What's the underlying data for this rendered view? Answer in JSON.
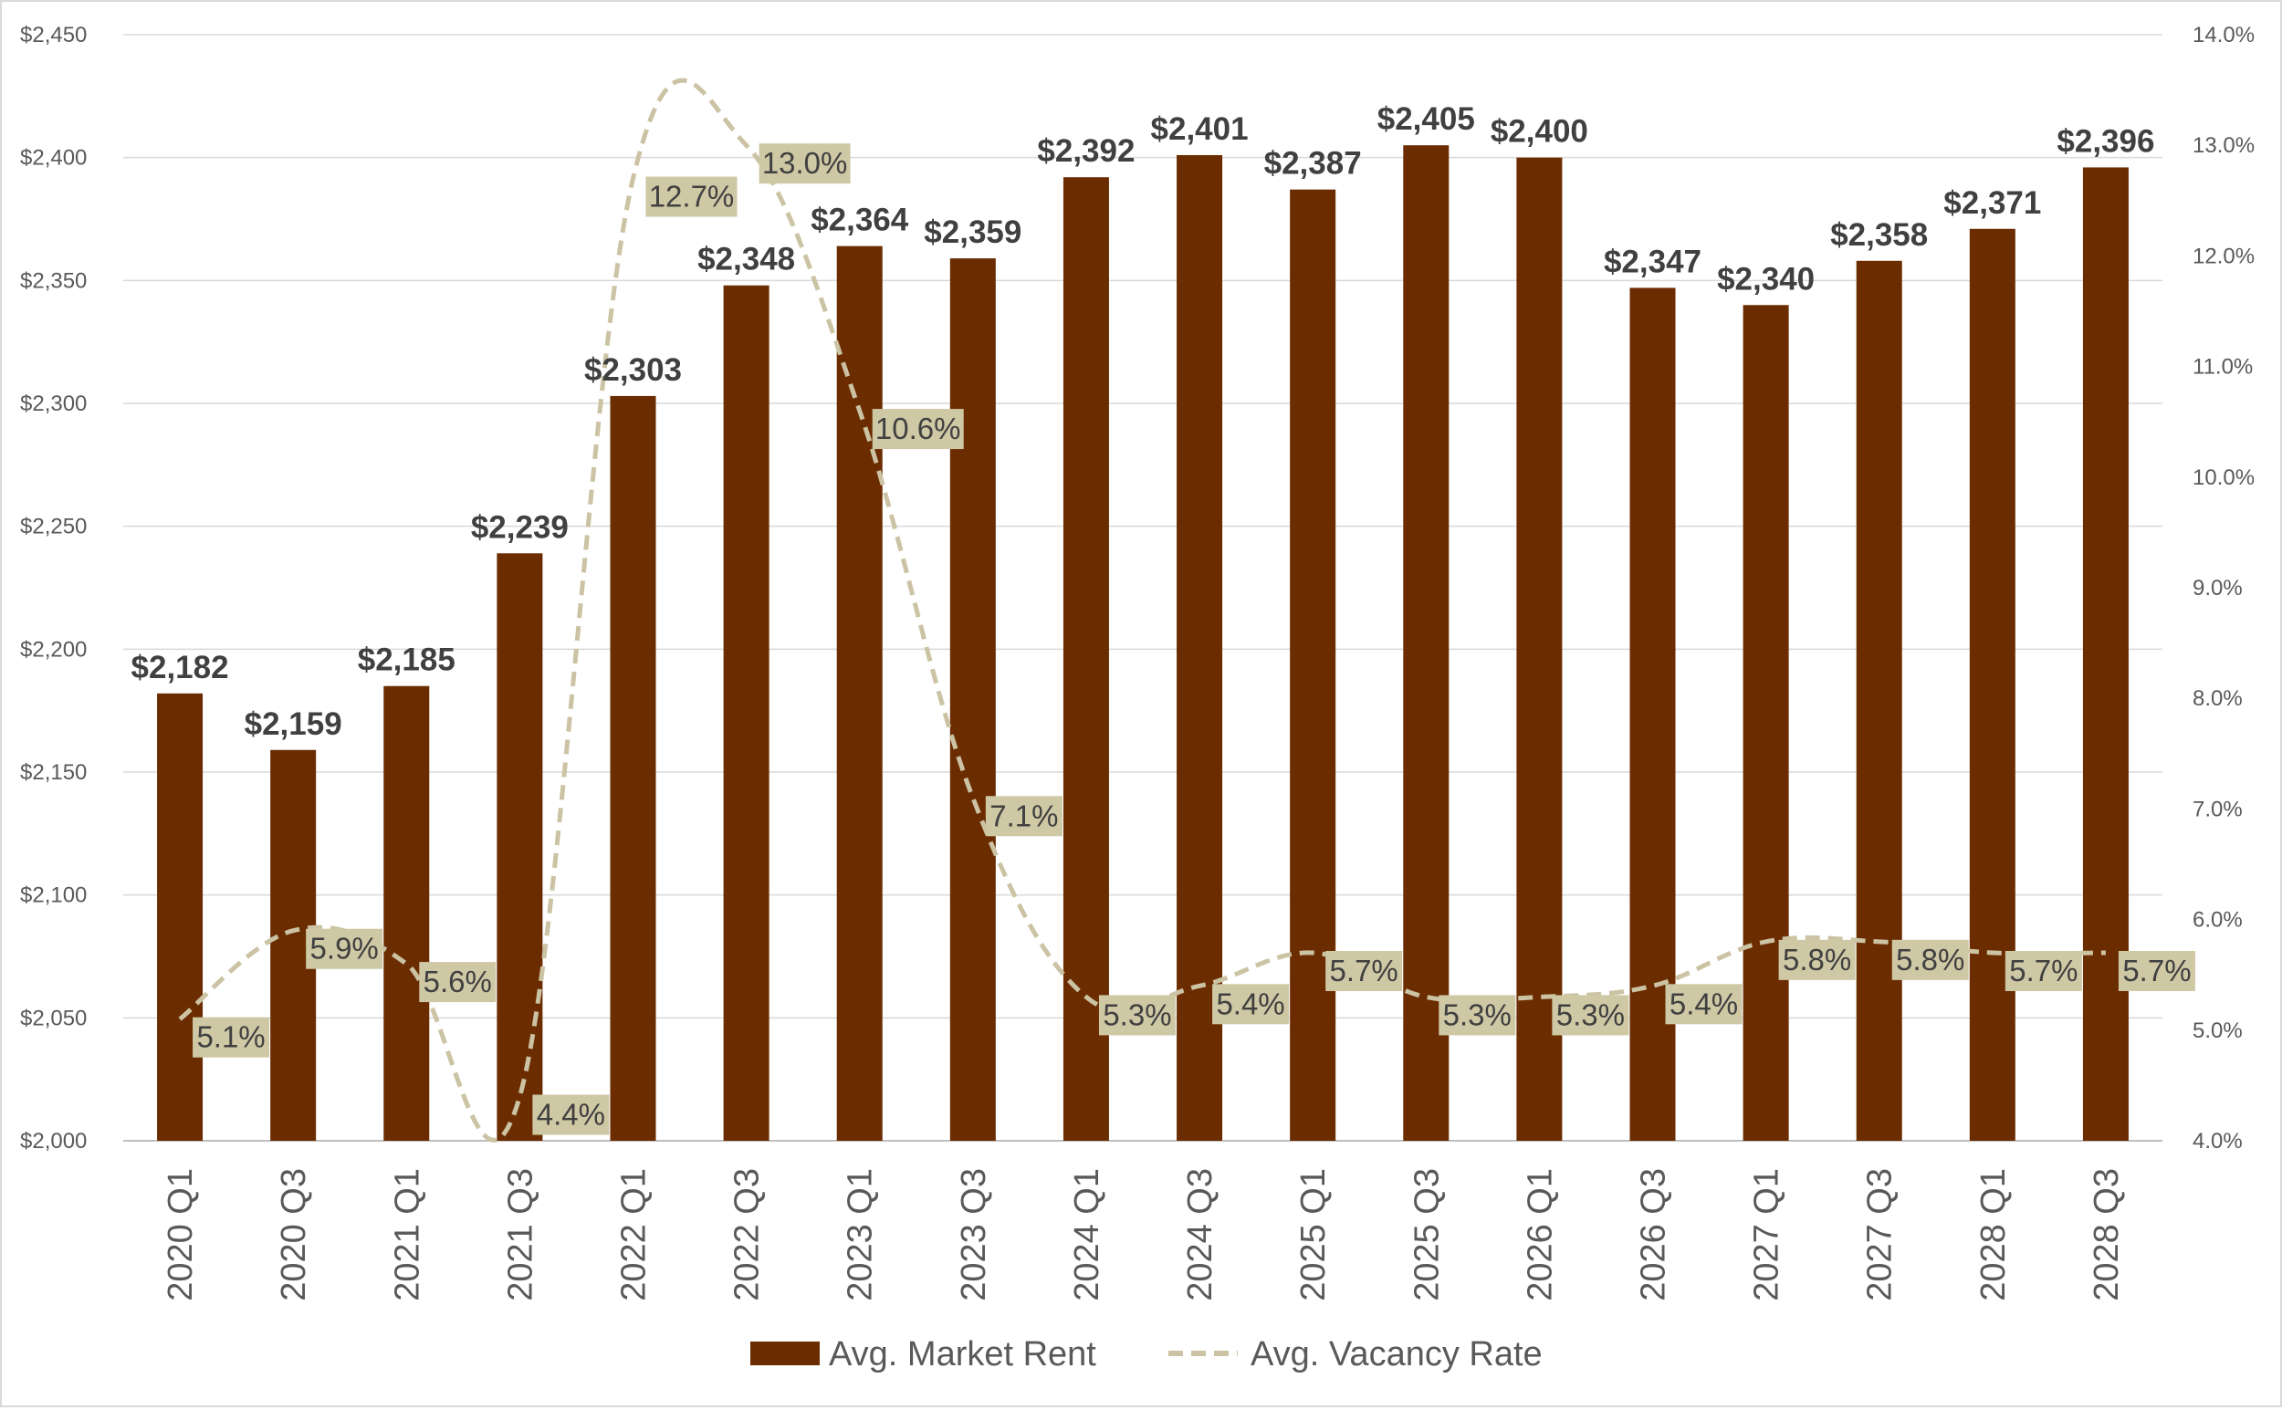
{
  "chart_data": {
    "type": "bar",
    "categories": [
      "2020 Q1",
      "2020 Q3",
      "2021 Q1",
      "2021 Q3",
      "2022 Q1",
      "2022 Q3",
      "2023 Q1",
      "2023 Q3",
      "2024 Q1",
      "2024 Q3",
      "2025 Q1",
      "2025 Q3",
      "2026 Q1",
      "2026 Q3",
      "2027 Q1",
      "2027 Q3",
      "2028 Q1",
      "2028 Q3"
    ],
    "series": [
      {
        "name": "Avg. Market Rent",
        "kind": "bar",
        "axis": "left",
        "color": "#6b2c00",
        "values": [
          2182,
          2159,
          2185,
          2239,
          2303,
          2348,
          2364,
          2359,
          2392,
          2401,
          2387,
          2405,
          2400,
          2347,
          2340,
          2358,
          2371,
          2396
        ],
        "labels": [
          "$2,182",
          "$2,159",
          "$2,185",
          "$2,239",
          "$2,303",
          "$2,348",
          "$2,364",
          "$2,359",
          "$2,392",
          "$2,401",
          "$2,387",
          "$2,405",
          "$2,400",
          "$2,347",
          "$2,340",
          "$2,358",
          "$2,371",
          "$2,396"
        ]
      },
      {
        "name": "Avg. Vacancy Rate",
        "kind": "line-dashed",
        "axis": "right",
        "color": "#cbc3a3",
        "label_box_color": "#cfc8a5",
        "values": [
          5.1,
          5.9,
          5.6,
          4.4,
          12.7,
          13.0,
          10.6,
          7.1,
          5.3,
          5.4,
          5.7,
          5.3,
          5.3,
          5.4,
          5.8,
          5.8,
          5.7,
          5.7
        ],
        "labels": [
          "5.1%",
          "5.9%",
          "5.6%",
          "4.4%",
          "12.7%",
          "13.0%",
          "10.6%",
          "7.1%",
          "5.3%",
          "5.4%",
          "5.7%",
          "5.3%",
          "5.3%",
          "5.4%",
          "5.8%",
          "5.8%",
          "5.7%",
          "5.7%"
        ]
      }
    ],
    "y_left": {
      "ylim": [
        2000,
        2450
      ],
      "ticks": [
        2000,
        2050,
        2100,
        2150,
        2200,
        2250,
        2300,
        2350,
        2400,
        2450
      ],
      "tick_labels": [
        "$2,000",
        "$2,050",
        "$2,100",
        "$2,150",
        "$2,200",
        "$2,250",
        "$2,300",
        "$2,350",
        "$2,400",
        "$2,450"
      ]
    },
    "y_right": {
      "ylim": [
        4.0,
        14.0
      ],
      "ticks": [
        4,
        5,
        6,
        7,
        8,
        9,
        10,
        11,
        12,
        13,
        14
      ],
      "tick_labels": [
        "4.0%",
        "5.0%",
        "6.0%",
        "7.0%",
        "8.0%",
        "9.0%",
        "10.0%",
        "11.0%",
        "12.0%",
        "13.0%",
        "14.0%"
      ]
    },
    "grid": true,
    "legend": "bottom",
    "title": "",
    "xlabel": "",
    "ylabel": ""
  }
}
